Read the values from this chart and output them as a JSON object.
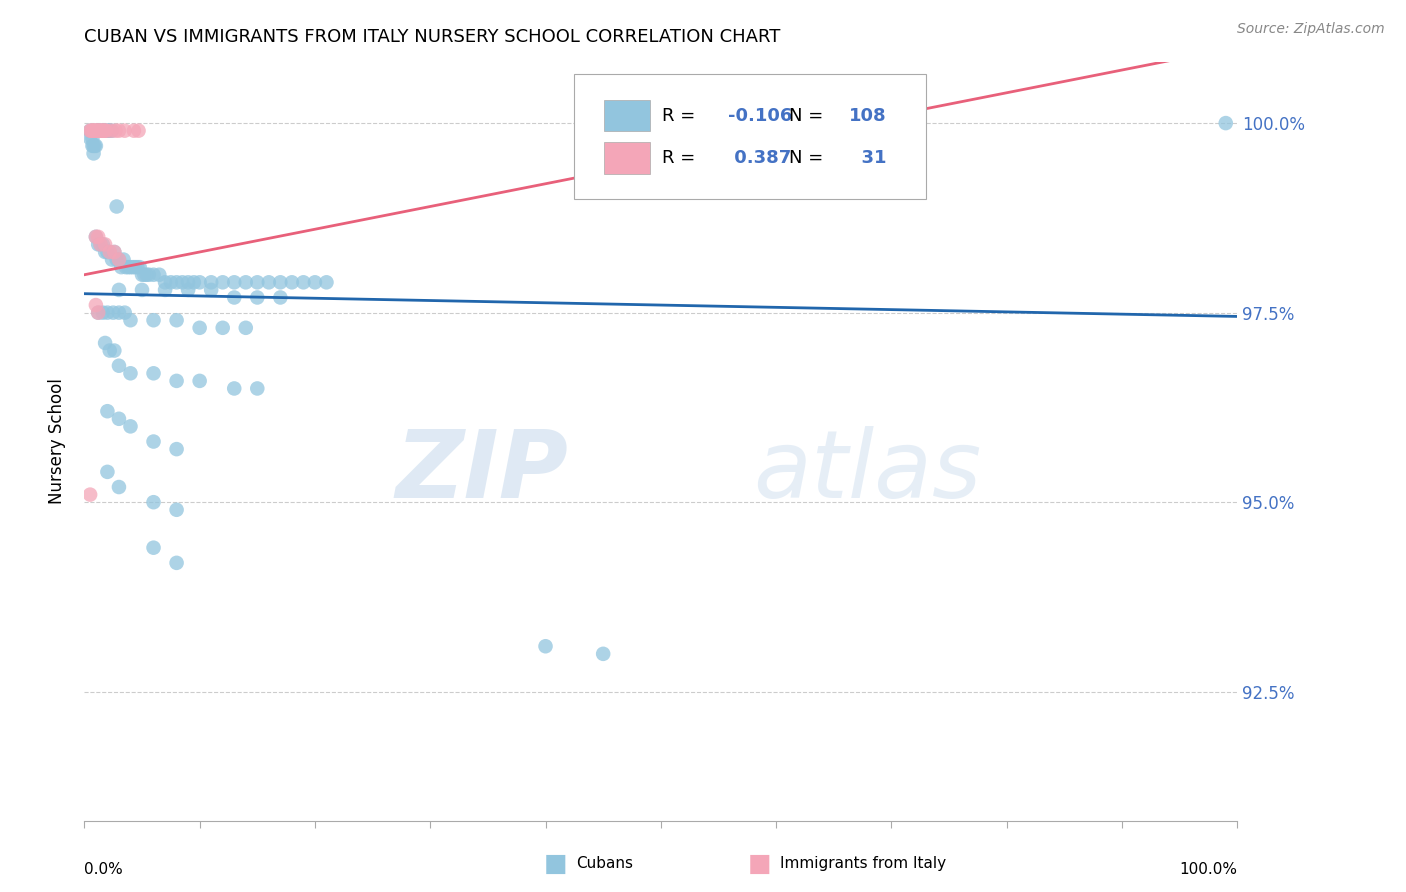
{
  "title": "CUBAN VS IMMIGRANTS FROM ITALY NURSERY SCHOOL CORRELATION CHART",
  "source": "Source: ZipAtlas.com",
  "ylabel": "Nursery School",
  "xlim": [
    0.0,
    1.0
  ],
  "ylim": [
    0.908,
    1.008
  ],
  "yticks": [
    0.925,
    0.95,
    0.975,
    1.0
  ],
  "ytick_labels": [
    "92.5%",
    "95.0%",
    "97.5%",
    "100.0%"
  ],
  "blue_color": "#92C5DE",
  "pink_color": "#F4A6B8",
  "blue_line_color": "#2166AC",
  "pink_line_color": "#E8607A",
  "R_blue": -0.106,
  "N_blue": 108,
  "R_pink": 0.387,
  "N_pink": 31,
  "legend_label_blue": "Cubans",
  "legend_label_pink": "Immigrants from Italy",
  "watermark": "ZIPatlas",
  "blue_trend_x": [
    0.0,
    1.0
  ],
  "blue_trend_y": [
    0.977,
    0.975
  ],
  "pink_trend_x": [
    0.0,
    0.2
  ],
  "pink_trend_y": [
    0.983,
    0.993
  ],
  "blue_scatter": [
    [
      0.005,
      0.999
    ],
    [
      0.005,
      0.998
    ],
    [
      0.007,
      0.998
    ],
    [
      0.007,
      0.997
    ],
    [
      0.008,
      0.997
    ],
    [
      0.008,
      0.996
    ],
    [
      0.009,
      0.997
    ],
    [
      0.01,
      0.997
    ],
    [
      0.01,
      0.999
    ],
    [
      0.012,
      0.999
    ],
    [
      0.013,
      0.999
    ],
    [
      0.015,
      0.999
    ],
    [
      0.016,
      0.999
    ],
    [
      0.017,
      0.999
    ],
    [
      0.018,
      0.999
    ],
    [
      0.02,
      0.999
    ],
    [
      0.021,
      0.999
    ],
    [
      0.022,
      0.999
    ],
    [
      0.024,
      0.999
    ],
    [
      0.028,
      0.989
    ],
    [
      0.01,
      0.985
    ],
    [
      0.012,
      0.984
    ],
    [
      0.014,
      0.984
    ],
    [
      0.016,
      0.984
    ],
    [
      0.018,
      0.983
    ],
    [
      0.02,
      0.983
    ],
    [
      0.022,
      0.983
    ],
    [
      0.024,
      0.982
    ],
    [
      0.026,
      0.983
    ],
    [
      0.028,
      0.982
    ],
    [
      0.03,
      0.982
    ],
    [
      0.032,
      0.981
    ],
    [
      0.034,
      0.982
    ],
    [
      0.036,
      0.981
    ],
    [
      0.038,
      0.981
    ],
    [
      0.04,
      0.981
    ],
    [
      0.042,
      0.981
    ],
    [
      0.044,
      0.981
    ],
    [
      0.046,
      0.981
    ],
    [
      0.048,
      0.981
    ],
    [
      0.05,
      0.98
    ],
    [
      0.052,
      0.98
    ],
    [
      0.054,
      0.98
    ],
    [
      0.056,
      0.98
    ],
    [
      0.06,
      0.98
    ],
    [
      0.065,
      0.98
    ],
    [
      0.07,
      0.979
    ],
    [
      0.075,
      0.979
    ],
    [
      0.08,
      0.979
    ],
    [
      0.085,
      0.979
    ],
    [
      0.09,
      0.979
    ],
    [
      0.095,
      0.979
    ],
    [
      0.1,
      0.979
    ],
    [
      0.11,
      0.979
    ],
    [
      0.12,
      0.979
    ],
    [
      0.13,
      0.979
    ],
    [
      0.14,
      0.979
    ],
    [
      0.15,
      0.979
    ],
    [
      0.16,
      0.979
    ],
    [
      0.17,
      0.979
    ],
    [
      0.18,
      0.979
    ],
    [
      0.19,
      0.979
    ],
    [
      0.2,
      0.979
    ],
    [
      0.21,
      0.979
    ],
    [
      0.03,
      0.978
    ],
    [
      0.05,
      0.978
    ],
    [
      0.07,
      0.978
    ],
    [
      0.09,
      0.978
    ],
    [
      0.11,
      0.978
    ],
    [
      0.13,
      0.977
    ],
    [
      0.15,
      0.977
    ],
    [
      0.17,
      0.977
    ],
    [
      0.012,
      0.975
    ],
    [
      0.016,
      0.975
    ],
    [
      0.02,
      0.975
    ],
    [
      0.025,
      0.975
    ],
    [
      0.03,
      0.975
    ],
    [
      0.035,
      0.975
    ],
    [
      0.04,
      0.974
    ],
    [
      0.06,
      0.974
    ],
    [
      0.08,
      0.974
    ],
    [
      0.1,
      0.973
    ],
    [
      0.12,
      0.973
    ],
    [
      0.14,
      0.973
    ],
    [
      0.018,
      0.971
    ],
    [
      0.022,
      0.97
    ],
    [
      0.026,
      0.97
    ],
    [
      0.03,
      0.968
    ],
    [
      0.04,
      0.967
    ],
    [
      0.06,
      0.967
    ],
    [
      0.08,
      0.966
    ],
    [
      0.1,
      0.966
    ],
    [
      0.13,
      0.965
    ],
    [
      0.15,
      0.965
    ],
    [
      0.02,
      0.962
    ],
    [
      0.03,
      0.961
    ],
    [
      0.04,
      0.96
    ],
    [
      0.06,
      0.958
    ],
    [
      0.08,
      0.957
    ],
    [
      0.02,
      0.954
    ],
    [
      0.03,
      0.952
    ],
    [
      0.06,
      0.95
    ],
    [
      0.08,
      0.949
    ],
    [
      0.06,
      0.944
    ],
    [
      0.08,
      0.942
    ],
    [
      0.4,
      0.931
    ],
    [
      0.45,
      0.93
    ],
    [
      0.99,
      1.0
    ]
  ],
  "pink_scatter": [
    [
      0.005,
      0.999
    ],
    [
      0.006,
      0.999
    ],
    [
      0.007,
      0.999
    ],
    [
      0.008,
      0.999
    ],
    [
      0.009,
      0.999
    ],
    [
      0.01,
      0.999
    ],
    [
      0.011,
      0.999
    ],
    [
      0.012,
      0.999
    ],
    [
      0.013,
      0.999
    ],
    [
      0.014,
      0.999
    ],
    [
      0.015,
      0.999
    ],
    [
      0.016,
      0.999
    ],
    [
      0.017,
      0.999
    ],
    [
      0.018,
      0.999
    ],
    [
      0.019,
      0.999
    ],
    [
      0.023,
      0.999
    ],
    [
      0.027,
      0.999
    ],
    [
      0.03,
      0.999
    ],
    [
      0.035,
      0.999
    ],
    [
      0.043,
      0.999
    ],
    [
      0.047,
      0.999
    ],
    [
      0.01,
      0.985
    ],
    [
      0.012,
      0.985
    ],
    [
      0.014,
      0.984
    ],
    [
      0.018,
      0.984
    ],
    [
      0.022,
      0.983
    ],
    [
      0.026,
      0.983
    ],
    [
      0.03,
      0.982
    ],
    [
      0.01,
      0.976
    ],
    [
      0.012,
      0.975
    ],
    [
      0.005,
      0.951
    ]
  ]
}
